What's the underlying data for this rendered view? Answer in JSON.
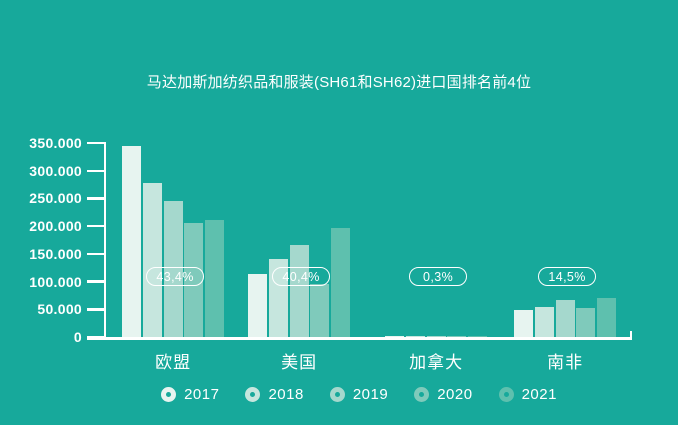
{
  "colors": {
    "background": "#17a99b",
    "text": "#ffffff",
    "axis": "#ffffff",
    "pill_border": "#ffffff"
  },
  "chart_data": {
    "type": "bar",
    "title": "马达加斯加纺织品和服装(SH61和SH62)进口国排名前4位",
    "categories": [
      "欧盟",
      "美国",
      "加拿大",
      "南非"
    ],
    "series": [
      {
        "name": "2017",
        "color": "#e7f4f0",
        "values": [
          345000,
          113000,
          500,
          48000
        ]
      },
      {
        "name": "2018",
        "color": "#c6e6de",
        "values": [
          278000,
          141000,
          2500,
          55000
        ]
      },
      {
        "name": "2019",
        "color": "#a5d8cd",
        "values": [
          245000,
          166000,
          2500,
          66000
        ]
      },
      {
        "name": "2020",
        "color": "#7fcabb",
        "values": [
          206000,
          96000,
          500,
          52000
        ]
      },
      {
        "name": "2021",
        "color": "#5ec0ae",
        "values": [
          212000,
          197000,
          1400,
          71000
        ]
      }
    ],
    "annotations": [
      {
        "category": "欧盟",
        "label": "43,4%"
      },
      {
        "category": "美国",
        "label": "40,4%"
      },
      {
        "category": "加拿大",
        "label": "0,3%"
      },
      {
        "category": "南非",
        "label": "14,5%"
      }
    ],
    "ytick_labels": [
      "350.000",
      "300.000",
      "250.000",
      "200.000",
      "150.000",
      "100.000",
      "50.000",
      "0"
    ],
    "ytick_values": [
      350000,
      300000,
      250000,
      200000,
      150000,
      100000,
      50000,
      0
    ],
    "ylim": [
      0,
      350000
    ],
    "xlabel": "",
    "ylabel": "",
    "grid": false,
    "legend_position": "bottom"
  },
  "legend": {
    "items": [
      {
        "label": "2017"
      },
      {
        "label": "2018"
      },
      {
        "label": "2019"
      },
      {
        "label": "2020"
      },
      {
        "label": "2021"
      }
    ]
  }
}
